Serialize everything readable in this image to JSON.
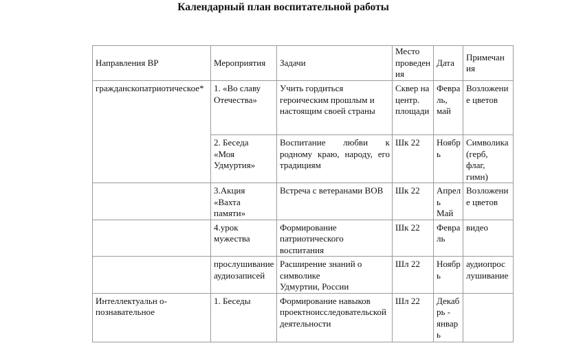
{
  "title": "Календарный план воспитательной работы",
  "table": {
    "headers": [
      "Направления ВР",
      "Мероприятия",
      "Задачи",
      "Место\nпроведен\nия",
      "Дата",
      "Примечан\nия"
    ],
    "rows": [
      [
        "гражданскопатриотическое*",
        "1. «Во славу\nОтечества»",
        "Учить гордиться\nгероическим прошлым и\nнастоящим своей страны",
        "Сквер на\nцентр.\nплощади",
        "Февра\nль,\nмай",
        "Возложени\nе цветов"
      ],
      [
        "",
        "2. Беседа\n«Моя\nУдмуртия»",
        "Воспитание любви к родному краю, народу, его традициям",
        "Шк 22",
        "Ноябр\nь",
        "Символика\n(герб,\nфлаг,\nгимн)"
      ],
      [
        "",
        "3.Акция\n«Вахта\nпамяти»",
        "Встреча с ветеранами ВОВ",
        "Шк 22",
        "Апрел\nь\nМай",
        "Возложени\nе цветов"
      ],
      [
        "",
        "4.урок\nмужества",
        "Формирование\nпатриотического\nвоспитания",
        "Шк 22",
        "Февра\nль",
        "видео"
      ],
      [
        "",
        "прослушивание\nаудиозаписей",
        "Расширение знаний о\nсимволике\nУдмуртии, России",
        "Шл 22",
        "Ноябр\nь",
        "аудиопрос\nлушивание"
      ],
      [
        "Интеллектуальн о-\nпознавательное",
        "1. Беседы",
        "Формирование навыков\nпроектноисследовательской\nдеятельности",
        "Шл 22",
        "Декаб\nрь -\nянвар\nь",
        ""
      ]
    ]
  }
}
